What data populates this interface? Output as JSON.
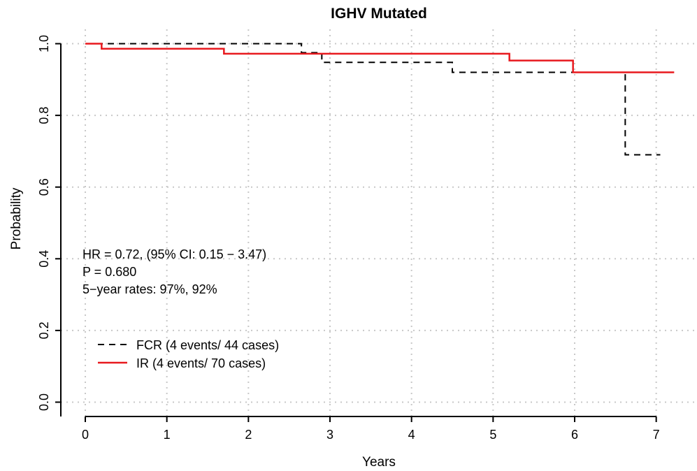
{
  "chart_data": {
    "type": "line",
    "subtype": "kaplan-meier",
    "title": "IGHV Mutated",
    "xlabel": "Years",
    "ylabel": "Probability",
    "xlim": [
      -0.3,
      7.5
    ],
    "ylim": [
      -0.04,
      1.04
    ],
    "x_ticks": [
      0,
      1,
      2,
      3,
      4,
      5,
      6,
      7
    ],
    "y_ticks": [
      0.0,
      0.2,
      0.4,
      0.6,
      0.8,
      1.0
    ],
    "x_tick_labels": [
      "0",
      "1",
      "2",
      "3",
      "4",
      "5",
      "6",
      "7"
    ],
    "y_tick_labels": [
      "0.0",
      "0.2",
      "0.4",
      "0.6",
      "0.8",
      "1.0"
    ],
    "grid": true,
    "legend_position": "bottom-left",
    "annotations": [
      "HR = 0.72, (95% CI: 0.15 − 3.47)",
      "P = 0.680",
      "5−year rates: 97%, 92%"
    ],
    "series": [
      {
        "name": "FCR  (4 events/ 44 cases)",
        "color": "#000000",
        "line_style": "dashed",
        "steps": [
          [
            0,
            1.0
          ],
          [
            2.65,
            0.975
          ],
          [
            2.9,
            0.948
          ],
          [
            4.5,
            0.92
          ],
          [
            6.62,
            0.69
          ],
          [
            7.05,
            0.69
          ]
        ]
      },
      {
        "name": "IR  (4 events/ 70 cases)",
        "color": "#e8191e",
        "line_style": "solid",
        "steps": [
          [
            0,
            1.0
          ],
          [
            0.2,
            0.986
          ],
          [
            1.7,
            0.972
          ],
          [
            5.2,
            0.953
          ],
          [
            5.98,
            0.92
          ],
          [
            7.22,
            0.92
          ]
        ]
      }
    ]
  }
}
